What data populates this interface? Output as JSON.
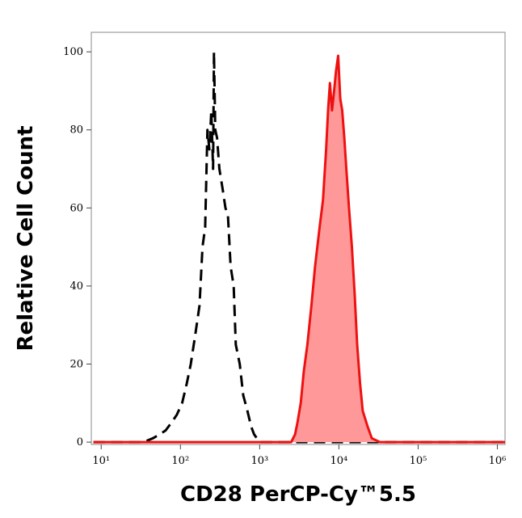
{
  "chart_data": {
    "type": "histogram-overlay",
    "xlabel": "CD28 PerCP-Cy™5.5",
    "ylabel": "Relative Cell Count",
    "xscale": "log",
    "xlim": [
      7.5,
      1250000
    ],
    "ylim": [
      -0.6,
      105
    ],
    "xticks": [
      {
        "value": 10,
        "label": "10¹"
      },
      {
        "value": 100,
        "label": "10²"
      },
      {
        "value": 1000,
        "label": "10³"
      },
      {
        "value": 10000,
        "label": "10⁴"
      },
      {
        "value": 100000,
        "label": "10⁵"
      },
      {
        "value": 1000000,
        "label": "10⁶"
      }
    ],
    "yticks": [
      0,
      20,
      40,
      60,
      80,
      100
    ],
    "series": [
      {
        "color": "#000000",
        "style": "dashed",
        "fill": false,
        "x": [
          8,
          20,
          34,
          45,
          55,
          65,
          77,
          90,
          105,
          120,
          135,
          155,
          174,
          190,
          205,
          219,
          232,
          245,
          258,
          265,
          275,
          290,
          310,
          340,
          370,
          398,
          430,
          470,
          500,
          560,
          620,
          700,
          780,
          850,
          1000,
          1250000
        ],
        "values": [
          0,
          0,
          0,
          1,
          2,
          3,
          5,
          7,
          10,
          15,
          20,
          28,
          35,
          50,
          55,
          80,
          75,
          85,
          70,
          100,
          80,
          78,
          70,
          65,
          60,
          58,
          45,
          40,
          25,
          20,
          12,
          8,
          4,
          2,
          0,
          0
        ]
      },
      {
        "color": "#ee1111",
        "style": "solid",
        "fill": true,
        "fill_color": "#ff9999",
        "x": [
          8,
          2500,
          2800,
          3000,
          3300,
          3600,
          4000,
          4500,
          5000,
          5700,
          6300,
          6900,
          7300,
          7700,
          8200,
          8700,
          9200,
          9800,
          10400,
          11000,
          11700,
          12400,
          13400,
          14600,
          15800,
          17000,
          18500,
          20000,
          23000,
          26000,
          33000,
          1250000
        ],
        "values": [
          0,
          0,
          2,
          5,
          10,
          18,
          25,
          35,
          45,
          55,
          62,
          75,
          85,
          92,
          85,
          90,
          95,
          99,
          88,
          85,
          78,
          70,
          60,
          50,
          38,
          25,
          15,
          8,
          4,
          1,
          0,
          0
        ]
      }
    ]
  }
}
